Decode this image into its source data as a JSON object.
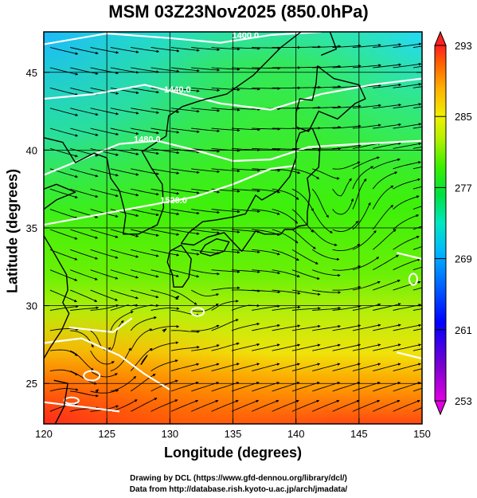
{
  "title": "MSM 03Z23Nov2025 (850.0hPa)",
  "xlabel": "Longitude (degrees)",
  "ylabel": "Latitude  (degrees)",
  "credits": [
    "Drawing by DCL (https://www.gfd-dennou.org/library/dcl/)",
    "Data from http://database.rish.kyoto-u.ac.jp/arch/jmadata/"
  ],
  "colors": {
    "temp_cold": "#1fd2ff",
    "temp_cool": "#2ee83b",
    "temp_mid": "#3ef20a",
    "temp_warm": "#b6ef0c",
    "temp_hot": "#ff8a00",
    "temp_hottest": "#ff3a1a",
    "contour": "#ffffff",
    "streamline": "#000000"
  },
  "chart_data": {
    "type": "heatmap",
    "variable": "temperature",
    "level": "850.0hPa",
    "xlim": [
      120,
      150
    ],
    "ylim": [
      22.4,
      47.6
    ],
    "x_ticks": [
      120,
      125,
      130,
      135,
      140,
      145,
      150
    ],
    "y_ticks": [
      25,
      30,
      35,
      40,
      45
    ],
    "colorbar": {
      "min": 253,
      "max": 293,
      "tick_labels": [
        293,
        285,
        277,
        269,
        261,
        253
      ],
      "colors": [
        "#e300e3",
        "#6a00cf",
        "#0000ff",
        "#0078ff",
        "#00b4ff",
        "#00e8cc",
        "#00e880",
        "#00e000",
        "#3ef000",
        "#9cf000",
        "#e0f000",
        "#ffd000",
        "#ffa000",
        "#ff6000",
        "#ff2020"
      ]
    },
    "contour_labels": [
      {
        "text": "1400.0",
        "lon": 136,
        "lat": 47.2
      },
      {
        "text": "1440.0",
        "lon": 130.6,
        "lat": 43.7
      },
      {
        "text": "1480.0",
        "lon": 128.2,
        "lat": 40.5
      },
      {
        "text": "1520.0",
        "lon": 130.3,
        "lat": 36.6
      }
    ],
    "features": [
      {
        "name": "cyclonic circulation",
        "lon": 143.5,
        "lat": 35.0
      },
      {
        "name": "cyclonic circulation",
        "lon": 125.0,
        "lat": 26.5
      }
    ]
  }
}
